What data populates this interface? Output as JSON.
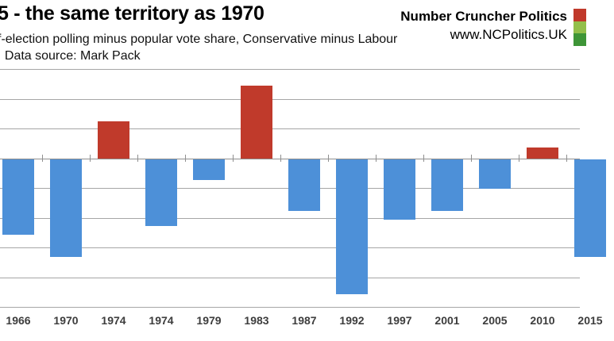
{
  "header": {
    "title": "5 - the same territory as 1970",
    "subtitle": "f-election polling minus popular vote share, Conservative minus Labour",
    "source": ". Data source: Mark Pack",
    "brand": {
      "name": "Number Cruncher Politics",
      "url": "www.NCPolitics.UK",
      "logo_colors": [
        "#c0392b",
        "#93bf4a",
        "#3e9537"
      ]
    }
  },
  "chart_data": {
    "type": "bar",
    "title": "5 - the same territory as 1970",
    "subtitle": "f-election polling minus popular vote share, Conservative minus Labour",
    "categories": [
      "1966",
      "1970",
      "1974",
      "1974",
      "1979",
      "1983",
      "1987",
      "1992",
      "1997",
      "2001",
      "2005",
      "2010",
      "2015"
    ],
    "values": [
      -5.1,
      -6.6,
      2.5,
      -4.5,
      -1.4,
      4.9,
      -3.5,
      -9.1,
      -4.1,
      -3.5,
      -2.0,
      0.7,
      -6.6
    ],
    "xlabel": "",
    "ylabel": "",
    "ylim": [
      -10,
      6
    ],
    "ytick_step": 2,
    "grid": true,
    "yaxis_tick_labels_visible": false,
    "legend": "none",
    "colors": {
      "positive": "#c03a2b",
      "negative": "#4d90d8",
      "gridline": "#a6a6a6",
      "axis_line": "#8f8f8f"
    }
  }
}
